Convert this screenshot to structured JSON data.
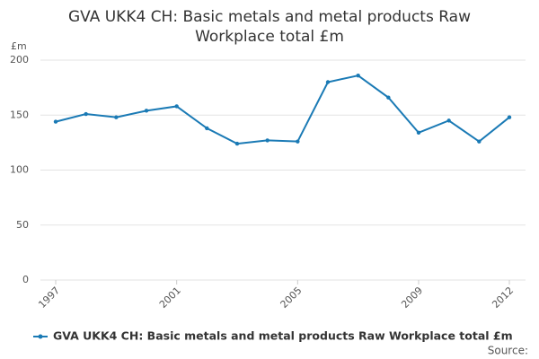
{
  "chart_data": {
    "type": "line",
    "title": "GVA UKK4 CH: Basic metals and metal products Raw Workplace total £m",
    "y_label": "£m",
    "x": [
      1997,
      1998,
      1999,
      2000,
      2001,
      2002,
      2003,
      2004,
      2005,
      2006,
      2007,
      2008,
      2009,
      2010,
      2011,
      2012
    ],
    "series": [
      {
        "name": "GVA UKK4 CH: Basic metals and metal products Raw Workplace total £m",
        "color": "#1a7ab5",
        "values": [
          144,
          151,
          148,
          154,
          158,
          138,
          124,
          127,
          126,
          180,
          186,
          166,
          134,
          145,
          126,
          148
        ]
      }
    ],
    "xlim": [
      1997,
      2012
    ],
    "xticks": [
      1997,
      2001,
      2005,
      2009,
      2012
    ],
    "ylim": [
      0,
      200
    ],
    "yticks": [
      0,
      50,
      100,
      150,
      200
    ],
    "grid": true,
    "legend": "bottom",
    "source": "Source:"
  }
}
